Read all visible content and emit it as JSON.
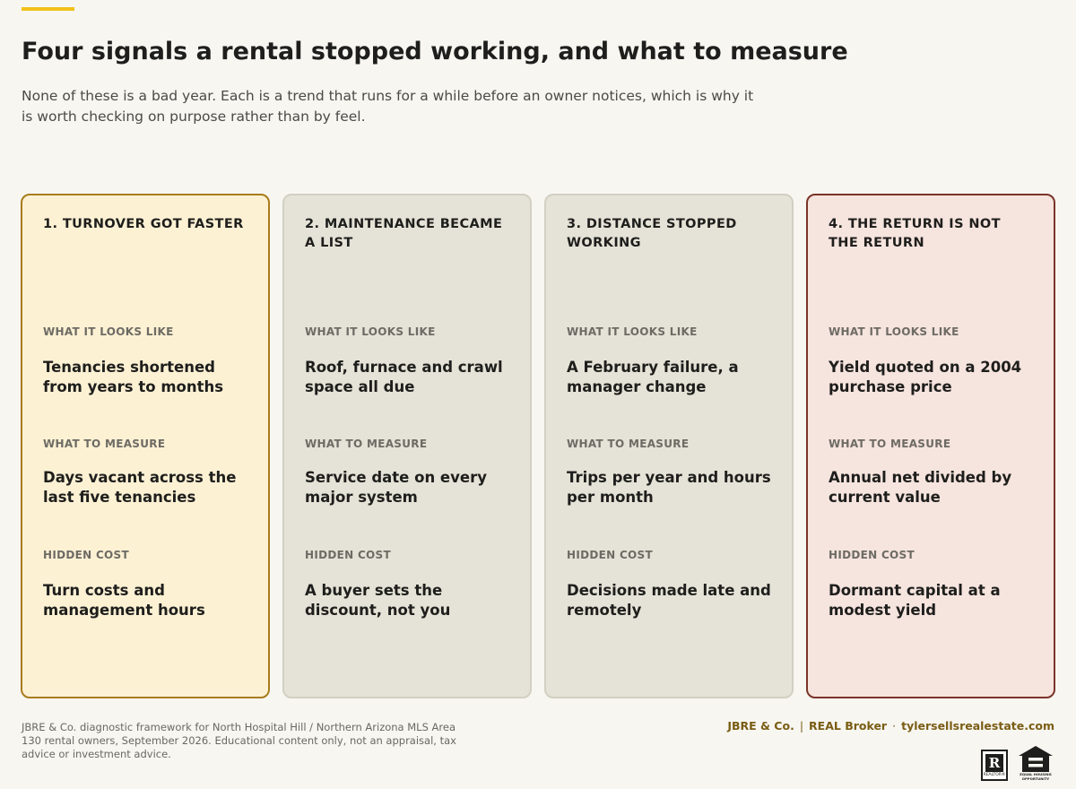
{
  "header": {
    "title": "Four signals a rental stopped working, and what to measure",
    "subtitle": "None of these is a bad year. Each is a trend that runs for a while before an owner notices, which is why it is worth checking on purpose rather than by feel."
  },
  "colors": {
    "accent": "#f2c21a",
    "card_highlight_bg": "#fdf1d4",
    "card_highlight_border": "#a87c1c",
    "card_neutral_bg": "#e5e3d7",
    "card_alert_bg": "#f6e4de",
    "card_alert_border": "#7a3429",
    "brand_text": "#7a5d14"
  },
  "cards": [
    {
      "title": "1.  TURNOVER GOT FASTER",
      "sections": [
        {
          "label": "WHAT IT LOOKS LIKE",
          "value": "Tenancies shortened from years to months"
        },
        {
          "label": "WHAT TO MEASURE",
          "value": "Days vacant across the last five tenancies"
        },
        {
          "label": "HIDDEN COST",
          "value": "Turn costs and management hours"
        }
      ]
    },
    {
      "title": "2.  MAINTENANCE BECAME A LIST",
      "sections": [
        {
          "label": "WHAT IT LOOKS LIKE",
          "value": "Roof, furnace and crawl space all due"
        },
        {
          "label": "WHAT TO MEASURE",
          "value": "Service date on every major system"
        },
        {
          "label": "HIDDEN COST",
          "value": "A buyer sets the discount, not you"
        }
      ]
    },
    {
      "title": "3.  DISTANCE STOPPED WORKING",
      "sections": [
        {
          "label": "WHAT IT LOOKS LIKE",
          "value": "A February failure, a manager change"
        },
        {
          "label": "WHAT TO MEASURE",
          "value": "Trips per year and hours per month"
        },
        {
          "label": "HIDDEN COST",
          "value": "Decisions made late and remotely"
        }
      ]
    },
    {
      "title": "4.  THE RETURN IS NOT THE RETURN",
      "sections": [
        {
          "label": "WHAT IT LOOKS LIKE",
          "value": "Yield quoted on a 2004 purchase price"
        },
        {
          "label": "WHAT TO MEASURE",
          "value": "Annual net divided by current value"
        },
        {
          "label": "HIDDEN COST",
          "value": "Dormant capital at a modest yield"
        }
      ]
    }
  ],
  "footer": {
    "note": "JBRE & Co. diagnostic framework for North Hospital Hill / Northern Arizona MLS Area 130 rental owners, September 2026. Educational content only, not an appraisal, tax advice or investment advice.",
    "brand": "JBRE & Co.",
    "separator_1": "|",
    "broker": "REAL Broker",
    "separator_2": "·",
    "website": "tylersellsrealestate.com",
    "realtor_logo_text": "REALTOR®",
    "eho_logo_text": "EQUAL HOUSING OPPORTUNITY",
    "icons": [
      "realtor-icon",
      "equal-housing-icon"
    ]
  }
}
